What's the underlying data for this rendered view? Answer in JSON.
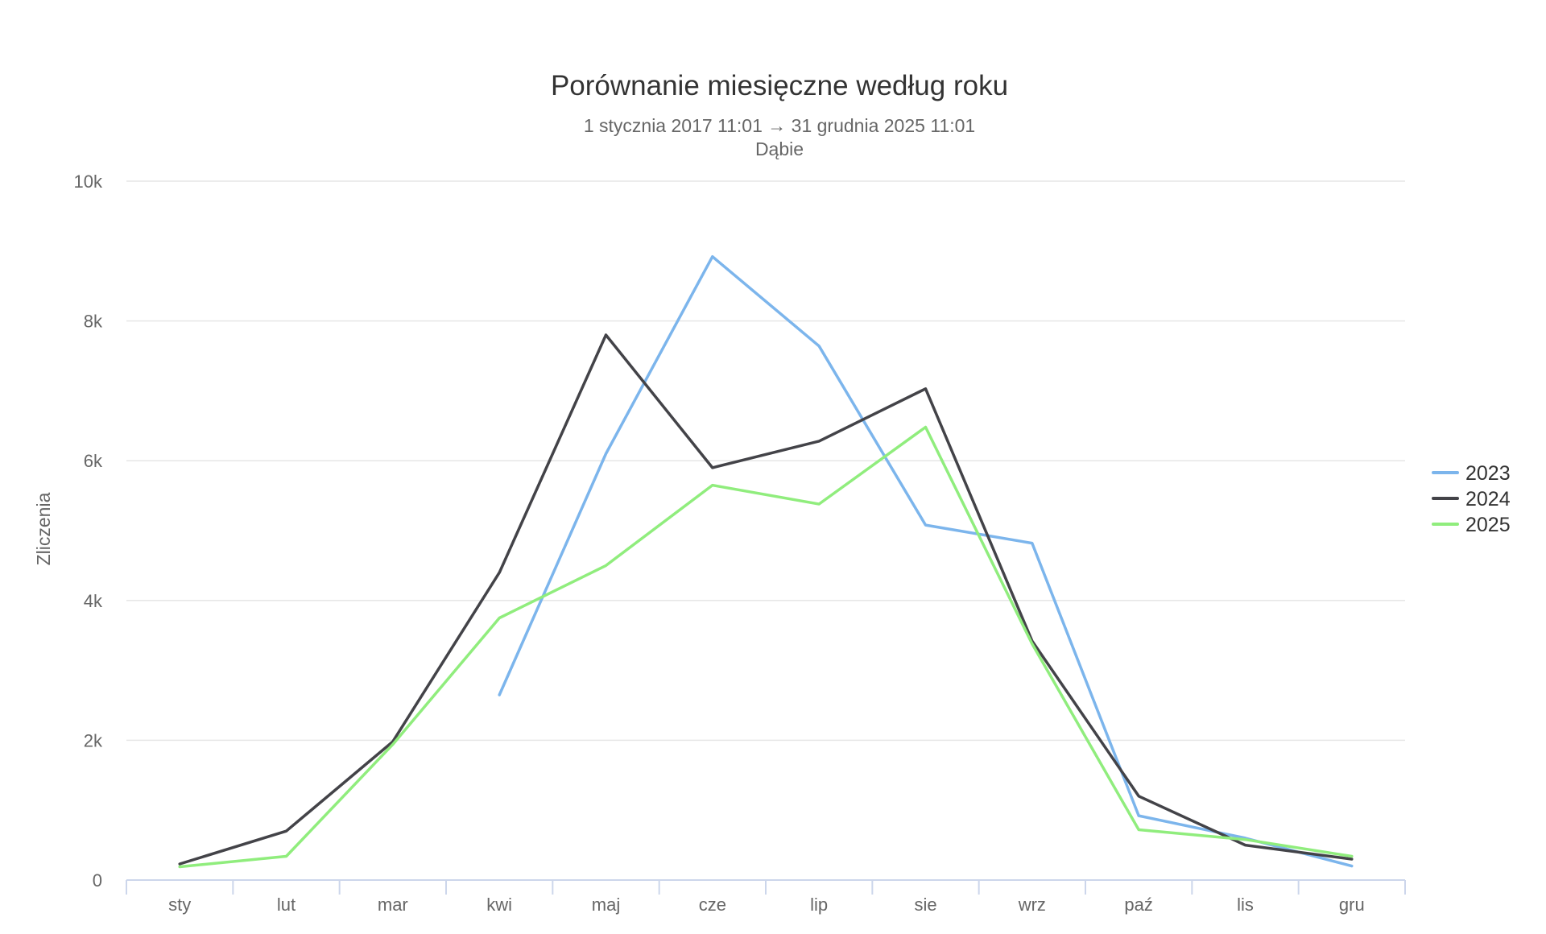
{
  "chart_data": {
    "type": "line",
    "title": "Porównanie miesięczne według roku",
    "subtitle": "1 stycznia 2017 11:01 → 31 grudnia 2025 11:01",
    "subtitle2": "Dąbie",
    "xlabel": "",
    "ylabel": "Zliczenia",
    "ylim": [
      0,
      10000
    ],
    "y_ticks": [
      0,
      2000,
      4000,
      6000,
      8000,
      10000
    ],
    "y_tick_labels": [
      "0",
      "2k",
      "4k",
      "6k",
      "8k",
      "10k"
    ],
    "grid": true,
    "legend_position": "right",
    "categories": [
      "sty",
      "lut",
      "mar",
      "kwi",
      "maj",
      "cze",
      "lip",
      "sie",
      "wrz",
      "paź",
      "lis",
      "gru"
    ],
    "series": [
      {
        "name": "2023",
        "color": "#7cb5ec",
        "values": [
          null,
          null,
          null,
          2650,
          6100,
          8920,
          7640,
          5080,
          4820,
          920,
          600,
          200
        ]
      },
      {
        "name": "2024",
        "color": "#434348",
        "values": [
          230,
          700,
          1980,
          4400,
          7800,
          5900,
          6280,
          7030,
          3420,
          1200,
          500,
          300
        ]
      },
      {
        "name": "2025",
        "color": "#90ed7d",
        "values": [
          190,
          340,
          1940,
          3750,
          4500,
          5650,
          5380,
          6480,
          3380,
          720,
          580,
          340
        ]
      }
    ]
  }
}
